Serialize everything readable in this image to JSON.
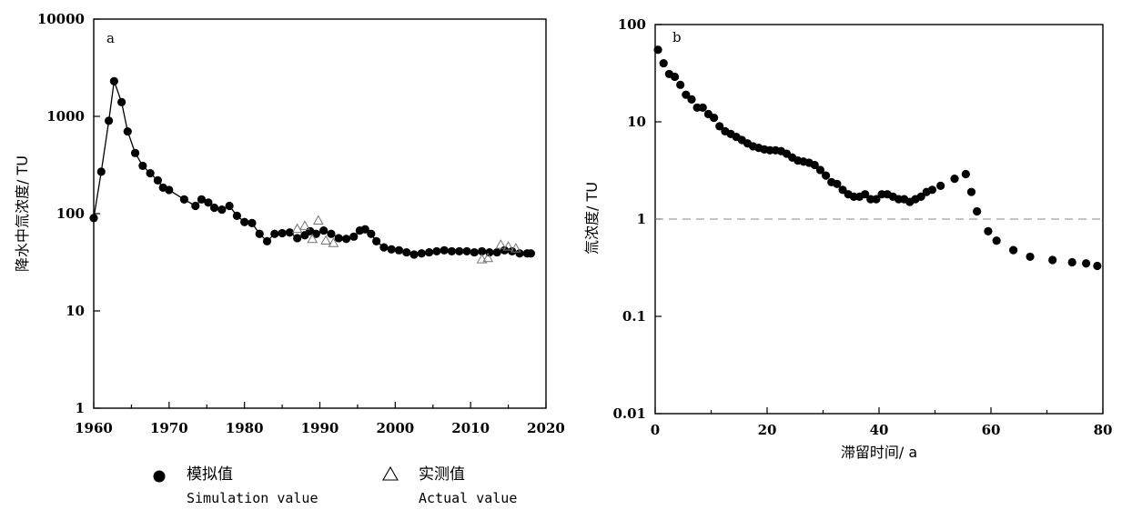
{
  "chart_data": [
    {
      "panel": "a",
      "type": "line",
      "ylabel": "降水中氚浓度/ TU",
      "xlabel": "",
      "ylog": true,
      "xlim": [
        1960,
        2020
      ],
      "ylim": [
        1,
        10000
      ],
      "xticks": [
        1960,
        1970,
        1980,
        1990,
        2000,
        2010,
        2020
      ],
      "yticks": [
        1,
        10,
        100,
        1000,
        10000
      ],
      "series": [
        {
          "name": "模拟值",
          "marker": "filled-circle",
          "line": true,
          "x": [
            1960,
            1961,
            1962,
            1962.7,
            1963.7,
            1964.5,
            1965.5,
            1966.5,
            1967.5,
            1968.5,
            1969.2,
            1970,
            1972,
            1973.5,
            1974.3,
            1975.2,
            1976,
            1977,
            1978,
            1979,
            1980,
            1981,
            1982,
            1983,
            1984,
            1985,
            1986,
            1987,
            1988,
            1988.7,
            1989.5,
            1990.5,
            1991.5,
            1992.5,
            1993.5,
            1994.5,
            1995.3,
            1996,
            1996.8,
            1997.5,
            1998.5,
            1999.5,
            2000.5,
            2001.5,
            2002.5,
            2003.5,
            2004.5,
            2005.5,
            2006.5,
            2007.5,
            2008.5,
            2009.5,
            2010.5,
            2011.5,
            2012.5,
            2013.5,
            2014.5,
            2015.5,
            2016.5,
            2017.5,
            2018
          ],
          "y": [
            90,
            270,
            900,
            2300,
            1400,
            700,
            420,
            310,
            260,
            220,
            185,
            175,
            140,
            120,
            140,
            130,
            115,
            110,
            120,
            95,
            82,
            80,
            62,
            52,
            62,
            63,
            64,
            56,
            60,
            66,
            62,
            67,
            62,
            56,
            55,
            58,
            67,
            69,
            62,
            52,
            45,
            43,
            42,
            40,
            38,
            39,
            40,
            41,
            42,
            41,
            41,
            41,
            40,
            41,
            40,
            40,
            42,
            41,
            39,
            39,
            39
          ]
        },
        {
          "name": "实测值",
          "marker": "open-triangle",
          "line": false,
          "x": [
            1987,
            1988,
            1989,
            1989.8,
            1990.8,
            1991.8,
            2011.5,
            2012.3,
            2014,
            2015,
            2016
          ],
          "y": [
            70,
            75,
            55,
            85,
            53,
            50,
            34,
            35,
            48,
            46,
            44
          ]
        }
      ]
    },
    {
      "panel": "b",
      "type": "scatter",
      "ylabel": "氚浓度/ TU",
      "xlabel": "滞留时间/ a",
      "ylog": true,
      "xlim": [
        0,
        80
      ],
      "ylim": [
        0.01,
        100
      ],
      "xticks": [
        0,
        20,
        40,
        60,
        80
      ],
      "yticks": [
        0.01,
        0.1,
        1,
        10,
        100
      ],
      "reference_line_y": 1,
      "series": [
        {
          "marker": "filled-circle",
          "x": [
            0.5,
            1.5,
            2.5,
            3.5,
            4.5,
            5.5,
            6.5,
            7.5,
            8.5,
            9.5,
            10.5,
            11.5,
            12.5,
            13.5,
            14.5,
            15.5,
            16.5,
            17.5,
            18.5,
            19.5,
            20.5,
            21.5,
            22.5,
            23.5,
            24.5,
            25.5,
            26.5,
            27.5,
            28.5,
            29.5,
            30.5,
            31.5,
            32.5,
            33.5,
            34.5,
            35.5,
            36.5,
            37.5,
            38.5,
            39.5,
            40.5,
            41.5,
            42.5,
            43.5,
            44.5,
            45.5,
            46.5,
            47.5,
            48.5,
            49.5,
            51,
            53.5,
            55.5,
            56.5,
            57.5,
            59.5,
            61,
            64,
            67,
            71,
            74.5,
            77,
            79
          ],
          "y": [
            55,
            40,
            31,
            29,
            24,
            19,
            17,
            14,
            14,
            12,
            11,
            9,
            8,
            7.5,
            7,
            6.5,
            6,
            5.6,
            5.4,
            5.2,
            5.1,
            5.1,
            5,
            4.7,
            4.3,
            4,
            3.9,
            3.8,
            3.6,
            3.2,
            2.8,
            2.4,
            2.3,
            2,
            1.8,
            1.7,
            1.7,
            1.8,
            1.6,
            1.6,
            1.8,
            1.8,
            1.7,
            1.6,
            1.6,
            1.5,
            1.6,
            1.7,
            1.9,
            2,
            2.2,
            2.6,
            2.9,
            1.9,
            1.2,
            0.75,
            0.6,
            0.48,
            0.41,
            0.38,
            0.36,
            0.35,
            0.33
          ]
        }
      ]
    }
  ],
  "legend": {
    "sim_cn": "模拟值",
    "sim_en": "Simulation value",
    "obs_cn": "实测值",
    "obs_en": "Actual value"
  }
}
